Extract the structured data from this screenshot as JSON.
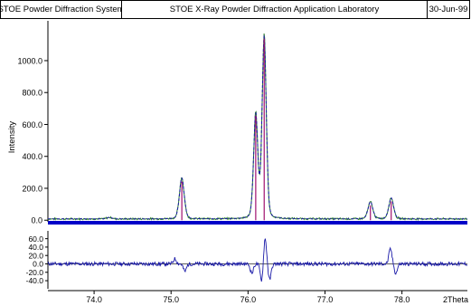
{
  "header": {
    "left": "STOE Powder Diffraction System",
    "center": "STOE X-Ray Powder Diffraction Application Laboratory",
    "right": "30-Jun-99"
  },
  "chart_data": [
    {
      "type": "line",
      "title": "",
      "ylabel": "Intensity",
      "xlabel": "2Theta",
      "xlim": [
        73.4,
        78.85
      ],
      "ylim": [
        -10,
        1170
      ],
      "yticks": [
        0.0,
        200.0,
        400.0,
        600.0,
        800.0,
        1000.0
      ],
      "ytick_labels": [
        "0.0",
        "200.0",
        "400.0",
        "600.0",
        "800.0",
        "1000.0"
      ],
      "grid": false,
      "colors": {
        "observed": "#2e7d32",
        "calculated": "#1a1aa8",
        "reflections": "#a0106e",
        "baseline": "#0000c8"
      },
      "baseline": 8,
      "peaks": [
        {
          "x": 74.2,
          "y": 18
        },
        {
          "x": 75.14,
          "y": 265
        },
        {
          "x": 76.1,
          "y": 660
        },
        {
          "x": 76.21,
          "y": 1150
        },
        {
          "x": 77.59,
          "y": 115
        },
        {
          "x": 77.86,
          "y": 140
        }
      ],
      "reflections": [
        75.14,
        76.1,
        76.21,
        77.59,
        77.86
      ]
    },
    {
      "type": "line",
      "title": "",
      "ylabel": "",
      "xlabel": "2Theta",
      "xlim": [
        73.4,
        78.85
      ],
      "ylim": [
        -55,
        70
      ],
      "yticks": [
        -40.0,
        -20.0,
        0.0,
        20.0,
        40.0,
        60.0
      ],
      "ytick_labels": [
        "-40.0",
        "-20.0",
        "0.0",
        "20.0",
        "40.0",
        "60.0"
      ],
      "xticks": [
        74.0,
        75.0,
        76.0,
        77.0,
        78.0
      ],
      "xtick_labels": [
        "74.0",
        "75.0",
        "76.0",
        "77.0",
        "78.0"
      ],
      "color": "#1a1aa8",
      "difference_features": [
        {
          "x": 75.05,
          "y": 12
        },
        {
          "x": 75.18,
          "y": -18
        },
        {
          "x": 76.05,
          "y": -22
        },
        {
          "x": 76.18,
          "y": -45
        },
        {
          "x": 76.22,
          "y": 65
        },
        {
          "x": 76.28,
          "y": -38
        },
        {
          "x": 77.85,
          "y": 35
        },
        {
          "x": 77.92,
          "y": -22
        }
      ]
    }
  ]
}
